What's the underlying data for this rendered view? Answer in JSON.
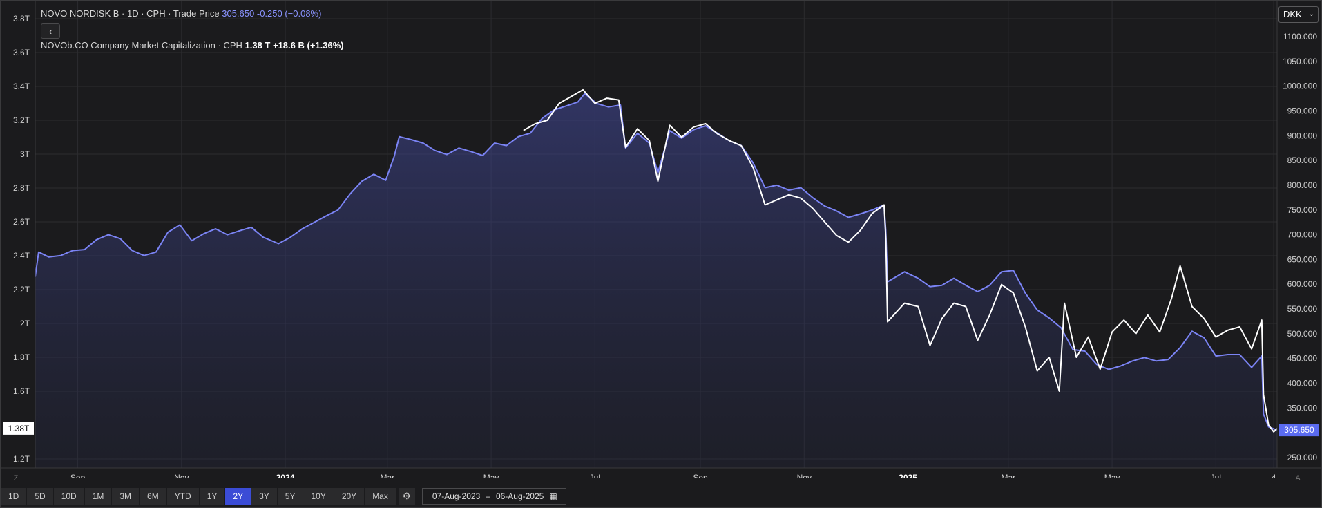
{
  "legend": {
    "series1_name": "NOVO NORDISK B · 1D · CPH · Trade Price",
    "series1_value": "305.650",
    "series1_change": "-0.250 (−0.08%)",
    "series2_name": "NOVOb.CO Company Market Capitalization · CPH",
    "series2_value": "1.38 T",
    "series2_change": "+18.6 B (+1.36%)"
  },
  "collapse_label": "‹",
  "currency_label": "DKK",
  "zoom_left_label": "Z",
  "zoom_right_label": "A",
  "toolbar": {
    "ranges": [
      "1D",
      "5D",
      "10D",
      "1M",
      "3M",
      "6M",
      "YTD",
      "1Y",
      "2Y",
      "3Y",
      "5Y",
      "10Y",
      "20Y",
      "Max"
    ],
    "active_range": "2Y",
    "settings_icon": "gear-icon",
    "date_from": "07-Aug-2023",
    "date_sep": "–",
    "date_to": "06-Aug-2025",
    "calendar_icon": "calendar-icon"
  },
  "colors": {
    "price_line": "#7b84f5",
    "mcap_line": "#ffffff",
    "background": "#1b1b1d",
    "grid": "#2c2c2f",
    "price_badge": "#5a6bf0"
  },
  "chart_data": {
    "type": "line",
    "x_labels": [
      "Sep",
      "Nov",
      "2024",
      "Mar",
      "May",
      "Jul",
      "Sep",
      "Nov",
      "2025",
      "Mar",
      "May",
      "Jul",
      "4"
    ],
    "x_label_dates": [
      "2023-09-01",
      "2023-11-01",
      "2024-01-01",
      "2024-03-01",
      "2024-05-01",
      "2024-07-01",
      "2024-09-01",
      "2024-11-01",
      "2025-01-01",
      "2025-03-01",
      "2025-05-01",
      "2025-07-01",
      "2025-08-04"
    ],
    "x_range": [
      "2023-08-07",
      "2025-08-06"
    ],
    "left_axis": {
      "ticks": [
        "3.8T",
        "3.6T",
        "3.4T",
        "3.2T",
        "3T",
        "2.8T",
        "2.6T",
        "2.4T",
        "2.2T",
        "2T",
        "1.8T",
        "1.6T",
        "1.2T"
      ],
      "tick_values": [
        3.8,
        3.6,
        3.4,
        3.2,
        3.0,
        2.8,
        2.6,
        2.4,
        2.2,
        2.0,
        1.8,
        1.6,
        1.2
      ],
      "current_label": "1.38T",
      "current_value": 1.38
    },
    "right_axis": {
      "ticks": [
        "1100.000",
        "1050.000",
        "1000.000",
        "950.000",
        "900.000",
        "850.000",
        "800.000",
        "750.000",
        "700.000",
        "650.000",
        "600.000",
        "550.000",
        "500.000",
        "450.000",
        "400.000",
        "350.000",
        "250.000"
      ],
      "tick_values": [
        1100,
        1050,
        1000,
        950,
        900,
        850,
        800,
        750,
        700,
        650,
        600,
        550,
        500,
        450,
        400,
        350,
        250
      ],
      "current_label": "305.650",
      "current_value": 305.65
    },
    "grid": true,
    "series": [
      {
        "name": "NOVO NORDISK B · Trade Price",
        "axis": "right",
        "area": true,
        "points": [
          [
            "2023-08-07",
            615
          ],
          [
            "2023-08-09",
            665
          ],
          [
            "2023-08-15",
            655
          ],
          [
            "2023-08-22",
            658
          ],
          [
            "2023-08-29",
            668
          ],
          [
            "2023-09-05",
            670
          ],
          [
            "2023-09-12",
            690
          ],
          [
            "2023-09-19",
            700
          ],
          [
            "2023-09-26",
            692
          ],
          [
            "2023-10-03",
            668
          ],
          [
            "2023-10-10",
            658
          ],
          [
            "2023-10-17",
            665
          ],
          [
            "2023-10-24",
            705
          ],
          [
            "2023-10-31",
            720
          ],
          [
            "2023-11-07",
            688
          ],
          [
            "2023-11-14",
            702
          ],
          [
            "2023-11-21",
            712
          ],
          [
            "2023-11-28",
            700
          ],
          [
            "2023-12-05",
            708
          ],
          [
            "2023-12-12",
            715
          ],
          [
            "2023-12-19",
            695
          ],
          [
            "2023-12-28",
            682
          ],
          [
            "2024-01-04",
            695
          ],
          [
            "2024-01-11",
            712
          ],
          [
            "2024-01-18",
            725
          ],
          [
            "2024-01-25",
            738
          ],
          [
            "2024-02-01",
            750
          ],
          [
            "2024-02-08",
            782
          ],
          [
            "2024-02-15",
            808
          ],
          [
            "2024-02-22",
            822
          ],
          [
            "2024-02-29",
            810
          ],
          [
            "2024-03-05",
            858
          ],
          [
            "2024-03-08",
            898
          ],
          [
            "2024-03-15",
            892
          ],
          [
            "2024-03-22",
            885
          ],
          [
            "2024-03-29",
            870
          ],
          [
            "2024-04-05",
            862
          ],
          [
            "2024-04-12",
            875
          ],
          [
            "2024-04-19",
            868
          ],
          [
            "2024-04-26",
            860
          ],
          [
            "2024-05-03",
            885
          ],
          [
            "2024-05-10",
            880
          ],
          [
            "2024-05-17",
            898
          ],
          [
            "2024-05-24",
            905
          ],
          [
            "2024-05-31",
            935
          ],
          [
            "2024-06-07",
            952
          ],
          [
            "2024-06-14",
            960
          ],
          [
            "2024-06-21",
            968
          ],
          [
            "2024-06-25",
            985
          ],
          [
            "2024-07-02",
            965
          ],
          [
            "2024-07-09",
            958
          ],
          [
            "2024-07-16",
            962
          ],
          [
            "2024-07-19",
            875
          ],
          [
            "2024-07-26",
            905
          ],
          [
            "2024-08-02",
            885
          ],
          [
            "2024-08-07",
            825
          ],
          [
            "2024-08-14",
            910
          ],
          [
            "2024-08-21",
            895
          ],
          [
            "2024-08-28",
            912
          ],
          [
            "2024-09-04",
            920
          ],
          [
            "2024-09-11",
            905
          ],
          [
            "2024-09-18",
            890
          ],
          [
            "2024-09-25",
            880
          ],
          [
            "2024-10-02",
            845
          ],
          [
            "2024-10-09",
            795
          ],
          [
            "2024-10-16",
            800
          ],
          [
            "2024-10-23",
            790
          ],
          [
            "2024-10-30",
            795
          ],
          [
            "2024-11-06",
            775
          ],
          [
            "2024-11-13",
            758
          ],
          [
            "2024-11-20",
            748
          ],
          [
            "2024-11-27",
            735
          ],
          [
            "2024-12-04",
            742
          ],
          [
            "2024-12-11",
            750
          ],
          [
            "2024-12-18",
            760
          ],
          [
            "2024-12-19",
            708
          ],
          [
            "2024-12-20",
            605
          ],
          [
            "2024-12-30",
            625
          ],
          [
            "2025-01-07",
            612
          ],
          [
            "2025-01-14",
            595
          ],
          [
            "2025-01-21",
            598
          ],
          [
            "2025-01-28",
            612
          ],
          [
            "2025-02-04",
            598
          ],
          [
            "2025-02-11",
            585
          ],
          [
            "2025-02-18",
            598
          ],
          [
            "2025-02-25",
            625
          ],
          [
            "2025-03-04",
            628
          ],
          [
            "2025-03-11",
            582
          ],
          [
            "2025-03-18",
            548
          ],
          [
            "2025-03-25",
            532
          ],
          [
            "2025-04-01",
            512
          ],
          [
            "2025-04-08",
            468
          ],
          [
            "2025-04-15",
            465
          ],
          [
            "2025-04-22",
            438
          ],
          [
            "2025-04-29",
            428
          ],
          [
            "2025-05-06",
            435
          ],
          [
            "2025-05-13",
            445
          ],
          [
            "2025-05-20",
            452
          ],
          [
            "2025-05-27",
            445
          ],
          [
            "2025-06-03",
            448
          ],
          [
            "2025-06-10",
            472
          ],
          [
            "2025-06-17",
            505
          ],
          [
            "2025-06-24",
            492
          ],
          [
            "2025-07-01",
            455
          ],
          [
            "2025-07-08",
            458
          ],
          [
            "2025-07-15",
            458
          ],
          [
            "2025-07-22",
            432
          ],
          [
            "2025-07-28",
            455
          ],
          [
            "2025-07-29",
            338
          ],
          [
            "2025-08-01",
            312
          ],
          [
            "2025-08-04",
            308
          ],
          [
            "2025-08-06",
            305.65
          ]
        ]
      },
      {
        "name": "NOVOb.CO Company Market Capitalization",
        "axis": "left",
        "area": false,
        "points": [
          [
            "2024-05-20",
            3.14
          ],
          [
            "2024-05-27",
            3.18
          ],
          [
            "2024-06-03",
            3.2
          ],
          [
            "2024-06-10",
            3.3
          ],
          [
            "2024-06-17",
            3.34
          ],
          [
            "2024-06-24",
            3.38
          ],
          [
            "2024-07-01",
            3.3
          ],
          [
            "2024-07-08",
            3.33
          ],
          [
            "2024-07-15",
            3.32
          ],
          [
            "2024-07-19",
            3.04
          ],
          [
            "2024-07-26",
            3.15
          ],
          [
            "2024-08-02",
            3.08
          ],
          [
            "2024-08-07",
            2.84
          ],
          [
            "2024-08-14",
            3.17
          ],
          [
            "2024-08-21",
            3.1
          ],
          [
            "2024-08-28",
            3.16
          ],
          [
            "2024-09-04",
            3.18
          ],
          [
            "2024-09-11",
            3.12
          ],
          [
            "2024-09-18",
            3.08
          ],
          [
            "2024-09-25",
            3.05
          ],
          [
            "2024-10-02",
            2.92
          ],
          [
            "2024-10-09",
            2.7
          ],
          [
            "2024-10-16",
            2.73
          ],
          [
            "2024-10-23",
            2.76
          ],
          [
            "2024-10-30",
            2.74
          ],
          [
            "2024-11-06",
            2.68
          ],
          [
            "2024-11-13",
            2.6
          ],
          [
            "2024-11-20",
            2.52
          ],
          [
            "2024-11-27",
            2.48
          ],
          [
            "2024-12-04",
            2.55
          ],
          [
            "2024-12-11",
            2.65
          ],
          [
            "2024-12-18",
            2.7
          ],
          [
            "2024-12-19",
            2.5
          ],
          [
            "2024-12-20",
            2.01
          ],
          [
            "2024-12-30",
            2.12
          ],
          [
            "2025-01-07",
            2.1
          ],
          [
            "2025-01-14",
            1.87
          ],
          [
            "2025-01-21",
            2.03
          ],
          [
            "2025-01-28",
            2.12
          ],
          [
            "2025-02-04",
            2.1
          ],
          [
            "2025-02-11",
            1.9
          ],
          [
            "2025-02-18",
            2.05
          ],
          [
            "2025-02-25",
            2.23
          ],
          [
            "2025-03-04",
            2.18
          ],
          [
            "2025-03-11",
            1.98
          ],
          [
            "2025-03-18",
            1.72
          ],
          [
            "2025-03-25",
            1.8
          ],
          [
            "2025-03-31",
            1.6
          ],
          [
            "2025-04-03",
            2.12
          ],
          [
            "2025-04-10",
            1.8
          ],
          [
            "2025-04-17",
            1.92
          ],
          [
            "2025-04-24",
            1.73
          ],
          [
            "2025-05-01",
            1.95
          ],
          [
            "2025-05-08",
            2.02
          ],
          [
            "2025-05-15",
            1.94
          ],
          [
            "2025-05-22",
            2.05
          ],
          [
            "2025-05-29",
            1.95
          ],
          [
            "2025-06-05",
            2.15
          ],
          [
            "2025-06-10",
            2.34
          ],
          [
            "2025-06-17",
            2.1
          ],
          [
            "2025-06-24",
            2.03
          ],
          [
            "2025-07-01",
            1.92
          ],
          [
            "2025-07-08",
            1.96
          ],
          [
            "2025-07-15",
            1.98
          ],
          [
            "2025-07-22",
            1.85
          ],
          [
            "2025-07-28",
            2.02
          ],
          [
            "2025-07-29",
            1.58
          ],
          [
            "2025-08-01",
            1.4
          ],
          [
            "2025-08-04",
            1.36
          ],
          [
            "2025-08-06",
            1.38
          ]
        ]
      }
    ]
  }
}
